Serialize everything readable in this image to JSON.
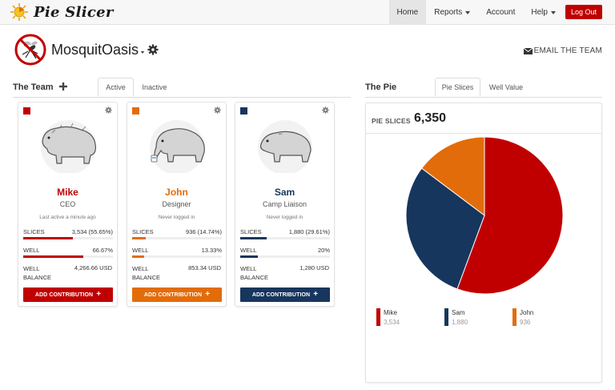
{
  "app": {
    "name": "Pie Slicer",
    "nav": [
      "Home",
      "Reports",
      "Account",
      "Help"
    ],
    "logout": "Log Out"
  },
  "company": {
    "name": "MosquitOasis",
    "email_team": "EMAIL THE TEAM"
  },
  "team": {
    "title": "The Team",
    "tabs": [
      "Active",
      "Inactive"
    ],
    "members": [
      {
        "name": "Mike",
        "role": "CEO",
        "last_active": "Last active a minute ago",
        "color": "#c00000",
        "slices_label": "SLICES",
        "slices_value": "3,534 (55.65%)",
        "slices_pct": 55.65,
        "well_label": "WELL",
        "well_value": "66.67%",
        "well_pct": 66.67,
        "balance_label_1": "WELL",
        "balance_label_2": "BALANCE",
        "balance_value": "4,266.66 USD",
        "button": "ADD CONTRIBUTION"
      },
      {
        "name": "John",
        "role": "Designer",
        "last_active": "Never logged in",
        "color": "#e36c0a",
        "slices_label": "SLICES",
        "slices_value": "936 (14.74%)",
        "slices_pct": 14.74,
        "well_label": "WELL",
        "well_value": "13.33%",
        "well_pct": 13.33,
        "balance_label_1": "WELL",
        "balance_label_2": "BALANCE",
        "balance_value": "853.34 USD",
        "button": "ADD CONTRIBUTION"
      },
      {
        "name": "Sam",
        "role": "Camp Liaison",
        "last_active": "Never logged in",
        "color": "#17365d",
        "slices_label": "SLICES",
        "slices_value": "1,880 (29.61%)",
        "slices_pct": 29.61,
        "well_label": "WELL",
        "well_value": "20%",
        "well_pct": 20,
        "balance_label_1": "WELL",
        "balance_label_2": "BALANCE",
        "balance_value": "1,280 USD",
        "button": "ADD CONTRIBUTION"
      }
    ]
  },
  "pie": {
    "title": "The Pie",
    "tabs": [
      "Pie Slices",
      "Well Value"
    ],
    "total_label": "PIE SLICES",
    "total_value": "6,350"
  },
  "chart_data": {
    "type": "pie",
    "title": "PIE SLICES",
    "total": 6350,
    "slices": [
      {
        "name": "Mike",
        "value": 3534,
        "label": "3,534",
        "color": "#c00000"
      },
      {
        "name": "Sam",
        "value": 1880,
        "label": "1,880",
        "color": "#17365d"
      },
      {
        "name": "John",
        "value": 936,
        "label": "936",
        "color": "#e36c0a"
      }
    ]
  }
}
